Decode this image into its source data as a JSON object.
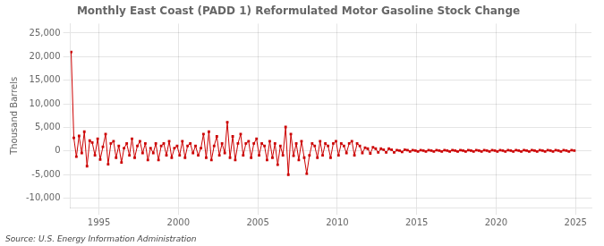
{
  "chart_data": {
    "type": "line",
    "title": "Monthly East Coast (PADD 1) Reformulated Motor Gasoline Stock Change",
    "y_label": "Thousand Barrels",
    "annotations": [
      "Source: U.S. Energy Information Administration"
    ],
    "color": "#cc0000",
    "marker": "square",
    "grid": true,
    "xlim": [
      1993.2,
      2026.0
    ],
    "xticks": [
      1995,
      2000,
      2005,
      2010,
      2015,
      2020,
      2025
    ],
    "ylim": [
      -12000,
      27000
    ],
    "yticks": [
      {
        "value": -10000,
        "label": "-10,000"
      },
      {
        "value": -5000,
        "label": "-5,000"
      },
      0,
      {
        "value": 5000,
        "label": "5,000"
      },
      {
        "value": 10000,
        "label": "10,000"
      },
      {
        "value": 15000,
        "label": "15,000"
      },
      {
        "value": 20000,
        "label": "20,000"
      },
      {
        "value": 25000,
        "label": "25,000"
      }
    ],
    "x": [
      1993.25,
      1993.42,
      1993.58,
      1993.75,
      1993.92,
      1994.08,
      1994.25,
      1994.42,
      1994.58,
      1994.75,
      1994.92,
      1995.08,
      1995.25,
      1995.42,
      1995.58,
      1995.75,
      1995.92,
      1996.08,
      1996.25,
      1996.42,
      1996.58,
      1996.75,
      1996.92,
      1997.08,
      1997.25,
      1997.42,
      1997.58,
      1997.75,
      1997.92,
      1998.08,
      1998.25,
      1998.42,
      1998.58,
      1998.75,
      1998.92,
      1999.08,
      1999.25,
      1999.42,
      1999.58,
      1999.75,
      1999.92,
      2000.08,
      2000.25,
      2000.42,
      2000.58,
      2000.75,
      2000.92,
      2001.08,
      2001.25,
      2001.42,
      2001.58,
      2001.75,
      2001.92,
      2002.08,
      2002.25,
      2002.42,
      2002.58,
      2002.75,
      2002.92,
      2003.08,
      2003.25,
      2003.42,
      2003.58,
      2003.75,
      2003.92,
      2004.08,
      2004.25,
      2004.42,
      2004.58,
      2004.75,
      2004.92,
      2005.08,
      2005.25,
      2005.42,
      2005.58,
      2005.75,
      2005.92,
      2006.08,
      2006.25,
      2006.42,
      2006.58,
      2006.75,
      2006.92,
      2007.08,
      2007.25,
      2007.42,
      2007.58,
      2007.75,
      2007.92,
      2008.08,
      2008.25,
      2008.42,
      2008.58,
      2008.75,
      2008.92,
      2009.08,
      2009.25,
      2009.42,
      2009.58,
      2009.75,
      2009.92,
      2010.08,
      2010.25,
      2010.42,
      2010.58,
      2010.75,
      2010.92,
      2011.08,
      2011.25,
      2011.42,
      2011.58,
      2011.75,
      2011.92,
      2012.08,
      2012.25,
      2012.42,
      2012.58,
      2012.75,
      2012.92,
      2013.08,
      2013.25,
      2013.42,
      2013.58,
      2013.75,
      2013.92,
      2014.08,
      2014.25,
      2014.42,
      2014.58,
      2014.75,
      2014.92,
      2015.08,
      2015.25,
      2015.42,
      2015.58,
      2015.75,
      2015.92,
      2016.08,
      2016.25,
      2016.42,
      2016.58,
      2016.75,
      2016.92,
      2017.08,
      2017.25,
      2017.42,
      2017.58,
      2017.75,
      2017.92,
      2018.08,
      2018.25,
      2018.42,
      2018.58,
      2018.75,
      2018.92,
      2019.08,
      2019.25,
      2019.42,
      2019.58,
      2019.75,
      2019.92,
      2020.08,
      2020.25,
      2020.42,
      2020.58,
      2020.75,
      2020.92,
      2021.08,
      2021.25,
      2021.42,
      2021.58,
      2021.75,
      2021.92,
      2022.08,
      2022.25,
      2022.42,
      2022.58,
      2022.75,
      2022.92,
      2023.08,
      2023.25,
      2023.42,
      2023.58,
      2023.75,
      2023.92,
      2024.08,
      2024.25,
      2024.42,
      2024.58,
      2024.75,
      2024.92
    ],
    "values": [
      21000,
      2800,
      -1200,
      3200,
      -400,
      4100,
      -3200,
      2200,
      1800,
      -900,
      2600,
      -1800,
      900,
      3600,
      -2800,
      1600,
      2100,
      -1400,
      1100,
      -2400,
      600,
      1600,
      -900,
      2600,
      -1400,
      1100,
      2100,
      -400,
      1600,
      -1900,
      600,
      -400,
      1600,
      -1900,
      1100,
      1600,
      -900,
      2100,
      -1400,
      600,
      1100,
      -900,
      2100,
      -1400,
      1100,
      1600,
      -400,
      1100,
      -900,
      600,
      3600,
      -1400,
      4100,
      -1900,
      1100,
      3100,
      -900,
      1600,
      -400,
      6100,
      -1400,
      3100,
      -1900,
      1600,
      3600,
      -900,
      1600,
      2100,
      -1400,
      1600,
      2600,
      -900,
      1600,
      1100,
      -1900,
      2100,
      -1400,
      1600,
      -2900,
      1100,
      -900,
      5100,
      -5000,
      3600,
      -1000,
      1600,
      -1900,
      2100,
      -1400,
      -4800,
      -900,
      1600,
      1100,
      -1400,
      2100,
      -900,
      1600,
      1100,
      -1400,
      1600,
      2100,
      -900,
      1600,
      1100,
      -400,
      1600,
      2100,
      -900,
      1600,
      1100,
      -400,
      700,
      500,
      -500,
      800,
      500,
      -300,
      500,
      300,
      -300,
      500,
      300,
      -300,
      200,
      100,
      -200,
      300,
      200,
      -100,
      200,
      100,
      -100,
      200,
      100,
      -100,
      200,
      100,
      -100,
      200,
      100,
      -100,
      200,
      100,
      -100,
      200,
      100,
      -100,
      200,
      100,
      -100,
      200,
      100,
      -100,
      200,
      100,
      -100,
      200,
      100,
      -100,
      200,
      100,
      -100,
      200,
      100,
      -100,
      200,
      100,
      -100,
      200,
      100,
      -100,
      200,
      100,
      -100,
      200,
      100,
      -100,
      200,
      100,
      -100,
      200,
      100,
      -100,
      200,
      100,
      -100,
      200,
      100,
      -100,
      200,
      100
    ]
  }
}
